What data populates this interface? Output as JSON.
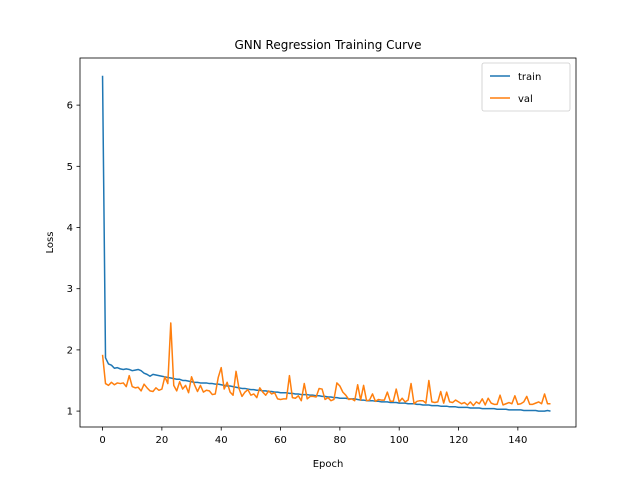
{
  "chart_data": {
    "type": "line",
    "title": "GNN Regression Training Curve",
    "xlabel": "Epoch",
    "ylabel": "Loss",
    "xlim": [
      -7.6,
      159.6
    ],
    "ylim": [
      0.74,
      6.77
    ],
    "xticks": [
      0,
      20,
      40,
      60,
      80,
      100,
      120,
      140
    ],
    "yticks": [
      1,
      2,
      3,
      4,
      5,
      6
    ],
    "grid": false,
    "legend_position": "top-right",
    "x": [
      0,
      1,
      2,
      3,
      4,
      5,
      6,
      7,
      8,
      9,
      10,
      11,
      12,
      13,
      14,
      15,
      16,
      17,
      18,
      19,
      20,
      21,
      22,
      23,
      24,
      25,
      26,
      27,
      28,
      29,
      30,
      31,
      32,
      33,
      34,
      35,
      36,
      37,
      38,
      39,
      40,
      41,
      42,
      43,
      44,
      45,
      46,
      47,
      48,
      49,
      50,
      51,
      52,
      53,
      54,
      55,
      56,
      57,
      58,
      59,
      60,
      61,
      62,
      63,
      64,
      65,
      66,
      67,
      68,
      69,
      70,
      71,
      72,
      73,
      74,
      75,
      76,
      77,
      78,
      79,
      80,
      81,
      82,
      83,
      84,
      85,
      86,
      87,
      88,
      89,
      90,
      91,
      92,
      93,
      94,
      95,
      96,
      97,
      98,
      99,
      100,
      101,
      102,
      103,
      104,
      105,
      106,
      107,
      108,
      109,
      110,
      111,
      112,
      113,
      114,
      115,
      116,
      117,
      118,
      119,
      120,
      121,
      122,
      123,
      124,
      125,
      126,
      127,
      128,
      129,
      130,
      131,
      132,
      133,
      134,
      135,
      136,
      137,
      138,
      139,
      140,
      141,
      142,
      143,
      144,
      145,
      146,
      147,
      148,
      149,
      150,
      151
    ],
    "series": [
      {
        "name": "train",
        "color": "#1f77b4",
        "values": [
          6.48,
          1.87,
          1.77,
          1.75,
          1.7,
          1.71,
          1.69,
          1.68,
          1.69,
          1.68,
          1.66,
          1.67,
          1.68,
          1.66,
          1.62,
          1.6,
          1.57,
          1.6,
          1.59,
          1.58,
          1.57,
          1.56,
          1.55,
          1.54,
          1.53,
          1.52,
          1.52,
          1.5,
          1.5,
          1.49,
          1.48,
          1.47,
          1.47,
          1.46,
          1.46,
          1.46,
          1.45,
          1.45,
          1.44,
          1.44,
          1.43,
          1.42,
          1.41,
          1.41,
          1.4,
          1.39,
          1.38,
          1.37,
          1.37,
          1.36,
          1.35,
          1.35,
          1.34,
          1.34,
          1.33,
          1.33,
          1.32,
          1.32,
          1.31,
          1.31,
          1.3,
          1.3,
          1.3,
          1.29,
          1.29,
          1.28,
          1.28,
          1.27,
          1.27,
          1.27,
          1.26,
          1.26,
          1.25,
          1.25,
          1.24,
          1.24,
          1.23,
          1.23,
          1.22,
          1.22,
          1.21,
          1.21,
          1.21,
          1.2,
          1.2,
          1.2,
          1.19,
          1.18,
          1.18,
          1.17,
          1.17,
          1.17,
          1.16,
          1.16,
          1.15,
          1.15,
          1.15,
          1.14,
          1.14,
          1.14,
          1.13,
          1.13,
          1.13,
          1.12,
          1.12,
          1.12,
          1.11,
          1.11,
          1.1,
          1.1,
          1.1,
          1.09,
          1.09,
          1.09,
          1.08,
          1.08,
          1.08,
          1.07,
          1.07,
          1.07,
          1.06,
          1.06,
          1.06,
          1.06,
          1.05,
          1.05,
          1.05,
          1.05,
          1.04,
          1.04,
          1.04,
          1.04,
          1.04,
          1.03,
          1.03,
          1.03,
          1.03,
          1.02,
          1.02,
          1.02,
          1.02,
          1.02,
          1.01,
          1.01,
          1.01,
          1.01,
          1.01,
          1.0,
          1.0,
          1.0,
          1.01,
          1.0
        ]
      },
      {
        "name": "val",
        "color": "#ff7f0e",
        "values": [
          1.92,
          1.45,
          1.42,
          1.47,
          1.43,
          1.46,
          1.45,
          1.46,
          1.4,
          1.58,
          1.4,
          1.38,
          1.39,
          1.33,
          1.44,
          1.38,
          1.33,
          1.32,
          1.38,
          1.34,
          1.36,
          1.56,
          1.45,
          2.44,
          1.42,
          1.33,
          1.48,
          1.36,
          1.42,
          1.3,
          1.56,
          1.43,
          1.32,
          1.42,
          1.31,
          1.34,
          1.33,
          1.27,
          1.28,
          1.55,
          1.71,
          1.36,
          1.47,
          1.31,
          1.26,
          1.65,
          1.37,
          1.24,
          1.31,
          1.35,
          1.26,
          1.28,
          1.22,
          1.38,
          1.31,
          1.26,
          1.33,
          1.28,
          1.3,
          1.2,
          1.19,
          1.2,
          1.2,
          1.58,
          1.22,
          1.21,
          1.25,
          1.17,
          1.45,
          1.2,
          1.24,
          1.24,
          1.23,
          1.37,
          1.36,
          1.19,
          1.22,
          1.17,
          1.19,
          1.46,
          1.41,
          1.31,
          1.26,
          1.19,
          1.2,
          1.17,
          1.43,
          1.18,
          1.42,
          1.17,
          1.18,
          1.28,
          1.16,
          1.19,
          1.18,
          1.18,
          1.31,
          1.16,
          1.16,
          1.36,
          1.15,
          1.21,
          1.15,
          1.18,
          1.45,
          1.12,
          1.16,
          1.17,
          1.17,
          1.13,
          1.5,
          1.15,
          1.14,
          1.15,
          1.32,
          1.13,
          1.31,
          1.15,
          1.14,
          1.18,
          1.15,
          1.12,
          1.14,
          1.1,
          1.15,
          1.09,
          1.15,
          1.12,
          1.2,
          1.1,
          1.21,
          1.13,
          1.11,
          1.11,
          1.26,
          1.1,
          1.12,
          1.14,
          1.12,
          1.25,
          1.11,
          1.12,
          1.15,
          1.24,
          1.11,
          1.11,
          1.13,
          1.15,
          1.12,
          1.28,
          1.12,
          1.12
        ]
      }
    ]
  }
}
